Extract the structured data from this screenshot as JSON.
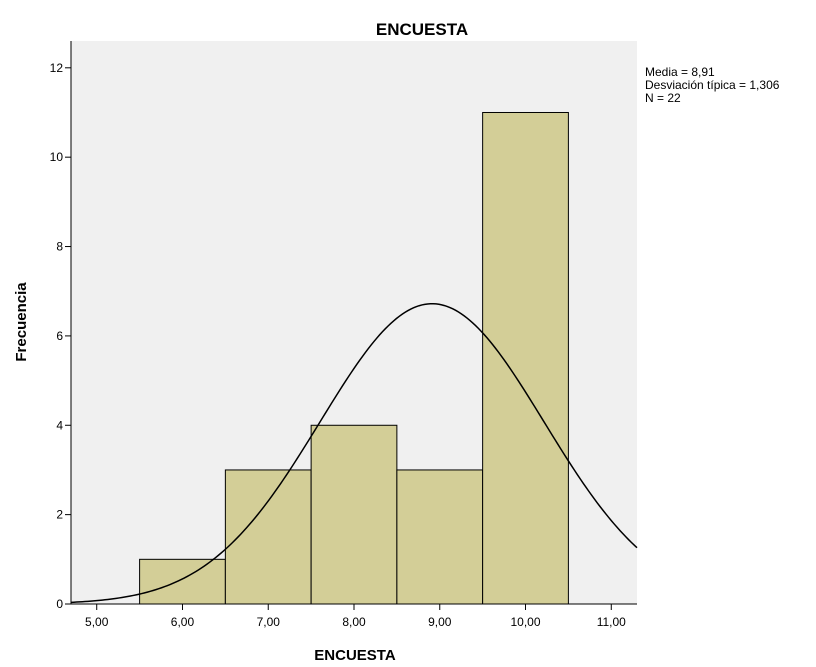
{
  "chart_data": {
    "type": "bar",
    "title": "ENCUESTA",
    "xlabel": "ENCUESTA",
    "ylabel": "Frecuencia",
    "xlim": [
      4.7,
      11.3
    ],
    "ylim": [
      0,
      12.6
    ],
    "x_ticks": [
      "5,00",
      "6,00",
      "7,00",
      "8,00",
      "9,00",
      "10,00",
      "11,00"
    ],
    "x_tick_values": [
      5,
      6,
      7,
      8,
      9,
      10,
      11
    ],
    "y_ticks": [
      "0",
      "2",
      "4",
      "6",
      "8",
      "10",
      "12"
    ],
    "y_tick_values": [
      0,
      2,
      4,
      6,
      8,
      10,
      12
    ],
    "bins": [
      {
        "start": 5.5,
        "end": 6.5,
        "count": 1
      },
      {
        "start": 6.5,
        "end": 7.5,
        "count": 3
      },
      {
        "start": 7.5,
        "end": 8.5,
        "count": 4
      },
      {
        "start": 8.5,
        "end": 9.5,
        "count": 3
      },
      {
        "start": 9.5,
        "end": 10.5,
        "count": 11
      }
    ],
    "normal_curve": {
      "mean": 8.91,
      "sd": 1.306,
      "n": 22,
      "bin_width": 1
    },
    "stats": [
      "Media = 8,91",
      "Desviación típica = 1,306",
      "N = 22"
    ],
    "grid": false,
    "colors": {
      "plot_bg": "#f0f0f0",
      "bar_fill": "#d3ce97",
      "bar_stroke": "#000000",
      "curve": "#000000"
    }
  }
}
